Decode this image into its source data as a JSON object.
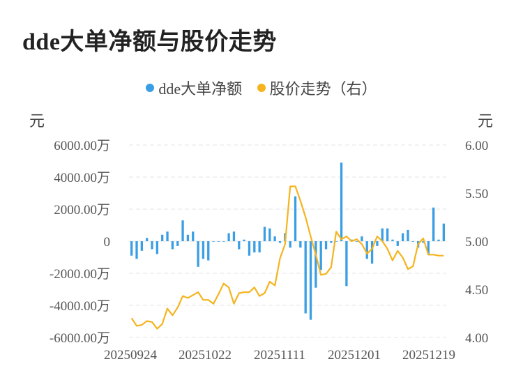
{
  "title": "dde大单净额与股价走势",
  "legend": {
    "series1": "dde大单净额",
    "series2": "股价走势（右）"
  },
  "units": {
    "left": "元",
    "right": "元"
  },
  "colors": {
    "bar": "#3a9ee4",
    "line": "#f5b41e",
    "grid": "#e6e6e6"
  },
  "chart_data": {
    "type": "bar+line",
    "x_tick_labels": [
      "20250924",
      "20251022",
      "20251111",
      "20251201",
      "20251219"
    ],
    "y_left": {
      "ticks": [
        6000,
        4000,
        2000,
        0,
        -2000,
        -4000,
        -6000
      ],
      "tick_labels": [
        "6000.00万",
        "4000.00万",
        "2000.00万",
        "0",
        "-2000.00万",
        "-4000.00万",
        "-6000.00万"
      ],
      "range": [
        -6000,
        6000
      ]
    },
    "y_right": {
      "ticks": [
        6.0,
        5.5,
        5.0,
        4.5,
        4.0
      ],
      "tick_labels": [
        "6.00",
        "5.50",
        "5.00",
        "4.50",
        "4.00"
      ],
      "range": [
        4.0,
        6.0
      ]
    },
    "series": [
      {
        "name": "dde大单净额",
        "kind": "bar",
        "axis": "left",
        "values": [
          -900,
          -1100,
          -600,
          200,
          -500,
          -800,
          400,
          600,
          -500,
          -300,
          1300,
          400,
          600,
          -1600,
          -1100,
          -1200,
          0,
          0,
          0,
          500,
          600,
          -500,
          100,
          -900,
          -700,
          -700,
          900,
          800,
          300,
          -100,
          500,
          -400,
          2800,
          -400,
          -4500,
          -4900,
          -2900,
          -1800,
          -500,
          -100,
          0,
          4900,
          -2800,
          100,
          0,
          300,
          -1100,
          -1400,
          -300,
          800,
          800,
          100,
          -300,
          500,
          700,
          0,
          -400,
          -100,
          -800,
          2100,
          100,
          1100
        ]
      },
      {
        "name": "股价走势（右）",
        "kind": "line",
        "axis": "right",
        "values": [
          4.2,
          4.12,
          4.13,
          4.17,
          4.16,
          4.09,
          4.14,
          4.3,
          4.23,
          4.31,
          4.43,
          4.41,
          4.44,
          4.47,
          4.39,
          4.39,
          4.35,
          4.45,
          4.56,
          4.52,
          4.35,
          4.46,
          4.47,
          4.47,
          4.52,
          4.43,
          4.46,
          4.58,
          4.54,
          4.82,
          4.97,
          5.57,
          5.57,
          5.42,
          5.25,
          5.05,
          4.86,
          4.65,
          4.66,
          4.73,
          5.1,
          5.02,
          5.05,
          5.0,
          5.02,
          4.97,
          4.87,
          4.92,
          5.05,
          5.0,
          4.92,
          4.8,
          4.9,
          4.83,
          4.71,
          4.74,
          4.97,
          5.03,
          4.86,
          4.86,
          4.85,
          4.85
        ]
      }
    ]
  }
}
